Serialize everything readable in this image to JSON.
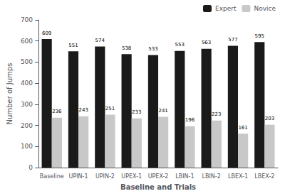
{
  "chart_data": {
    "type": "bar",
    "categories": [
      "Baseline",
      "UPIN-1",
      "UPIN-2",
      "UPEX-1",
      "UPEX-2",
      "LBIN-1",
      "LBIN-2",
      "LBEX-1",
      "LBEX-2"
    ],
    "series": [
      {
        "name": "Expert",
        "color": "#1a1a1a",
        "values": [
          609,
          551,
          574,
          538,
          533,
          553,
          563,
          577,
          595
        ]
      },
      {
        "name": "Novice",
        "color": "#c8c8c8",
        "values": [
          236,
          243,
          251,
          233,
          241,
          196,
          223,
          161,
          203
        ]
      }
    ],
    "xlabel": "Baseline and Trials",
    "ylabel": "Number of Jumps",
    "ylim": [
      0,
      700
    ],
    "yticks": [
      0,
      100,
      200,
      300,
      400,
      500,
      600,
      700
    ],
    "legend": "upper right",
    "data_labels": true,
    "grid": false
  }
}
